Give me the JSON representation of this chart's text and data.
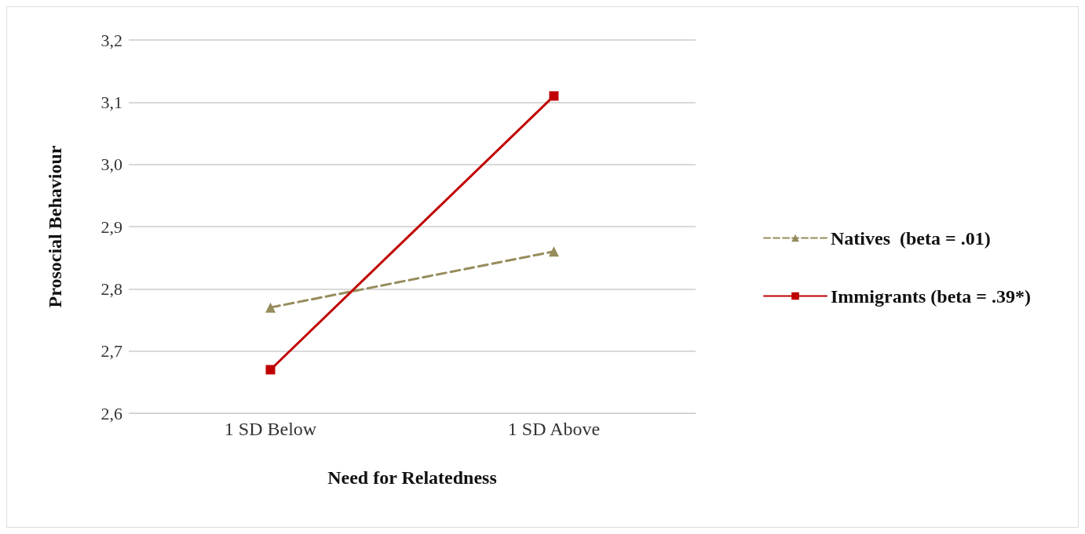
{
  "chart_data": {
    "type": "line",
    "xlabel": "Need for Relatedness",
    "ylabel": "Prosocial Behaviour",
    "categories": [
      "1 SD Below",
      "1 SD Above"
    ],
    "series": [
      {
        "name": "Natives  (beta = .01)",
        "color": "#968c5c",
        "values": [
          2.77,
          2.86
        ],
        "marker": "triangle",
        "line_style": "dashed"
      },
      {
        "name": "Immigrants (beta = .39*)",
        "color": "#c00000",
        "values": [
          2.67,
          3.11
        ],
        "marker": "square",
        "line_style": "solid"
      }
    ],
    "ylim": [
      2.6,
      3.2
    ],
    "yticks": [
      {
        "value": 2.6,
        "label": "2,6"
      },
      {
        "value": 2.7,
        "label": "2,7"
      },
      {
        "value": 2.8,
        "label": "2,8"
      },
      {
        "value": 2.9,
        "label": "2,9"
      },
      {
        "value": 3.0,
        "label": "3,0"
      },
      {
        "value": 3.1,
        "label": "3,1"
      },
      {
        "value": 3.2,
        "label": "3,2"
      }
    ],
    "grid": "y",
    "legend": "right"
  }
}
